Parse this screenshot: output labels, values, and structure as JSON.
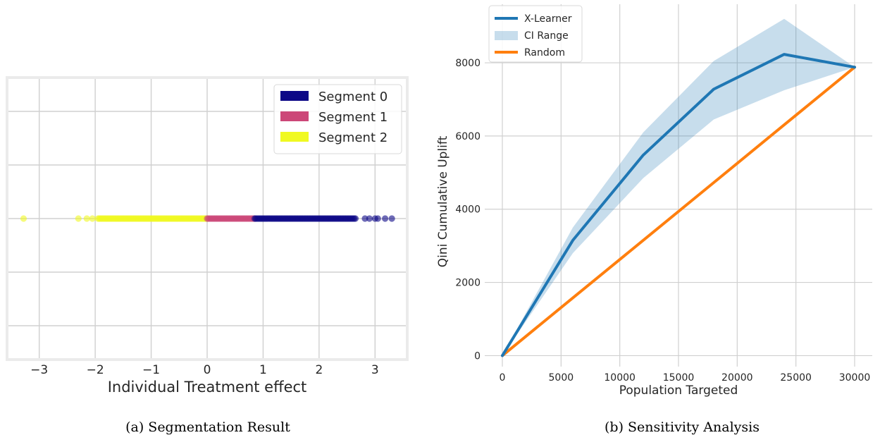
{
  "captions": {
    "a": "(a) Segmentation Result",
    "b": "(b) Sensitivity Analysis"
  },
  "chart_data": [
    {
      "type": "scatter",
      "title": "",
      "xlabel": "Individual Treatment effect",
      "ylabel": "",
      "xlim": [
        -3.55,
        3.55
      ],
      "xticks": [
        -3,
        -2,
        -1,
        0,
        1,
        2,
        3
      ],
      "xtick_labels": [
        "−3",
        "−2",
        "−1",
        "0",
        "1",
        "2",
        "3"
      ],
      "grid": true,
      "legend_position": "top-right",
      "series": [
        {
          "name": "Segment 0",
          "color": "#0d0887",
          "range": [
            0.85,
            2.65
          ],
          "outliers": [
            2.82,
            2.9,
            3.0,
            3.05,
            3.18,
            3.3
          ]
        },
        {
          "name": "Segment 1",
          "color": "#cc4778",
          "range": [
            0.0,
            0.85
          ],
          "outliers": []
        },
        {
          "name": "Segment 2",
          "color": "#f0f921",
          "range": [
            -1.95,
            0.0
          ],
          "outliers": [
            -3.28,
            -2.3,
            -2.15,
            -2.05
          ]
        }
      ]
    },
    {
      "type": "line",
      "title": "",
      "xlabel": "Population Targeted",
      "ylabel": "Qini Cumulative Uplift",
      "xlim": [
        -1500,
        31500
      ],
      "ylim": [
        -300,
        9600
      ],
      "xticks": [
        0,
        5000,
        10000,
        15000,
        20000,
        25000,
        30000
      ],
      "yticks": [
        0,
        2000,
        4000,
        6000,
        8000
      ],
      "grid": true,
      "legend_position": "top-left",
      "x": [
        0,
        6000,
        12000,
        18000,
        24000,
        30000
      ],
      "series": [
        {
          "name": "X-Learner",
          "color": "#1f77b4",
          "values": [
            0,
            3150,
            5480,
            7280,
            8230,
            7880
          ]
        },
        {
          "name": "Random",
          "color": "#ff7f0e",
          "values": [
            0,
            1576,
            3152,
            4728,
            6304,
            7880
          ]
        }
      ],
      "band": {
        "name": "CI Range",
        "color": "#1f77b4",
        "opacity": 0.25,
        "lower": [
          0,
          2800,
          4850,
          6450,
          7250,
          7880
        ],
        "upper": [
          0,
          3500,
          6100,
          8050,
          9200,
          7880
        ]
      }
    }
  ]
}
